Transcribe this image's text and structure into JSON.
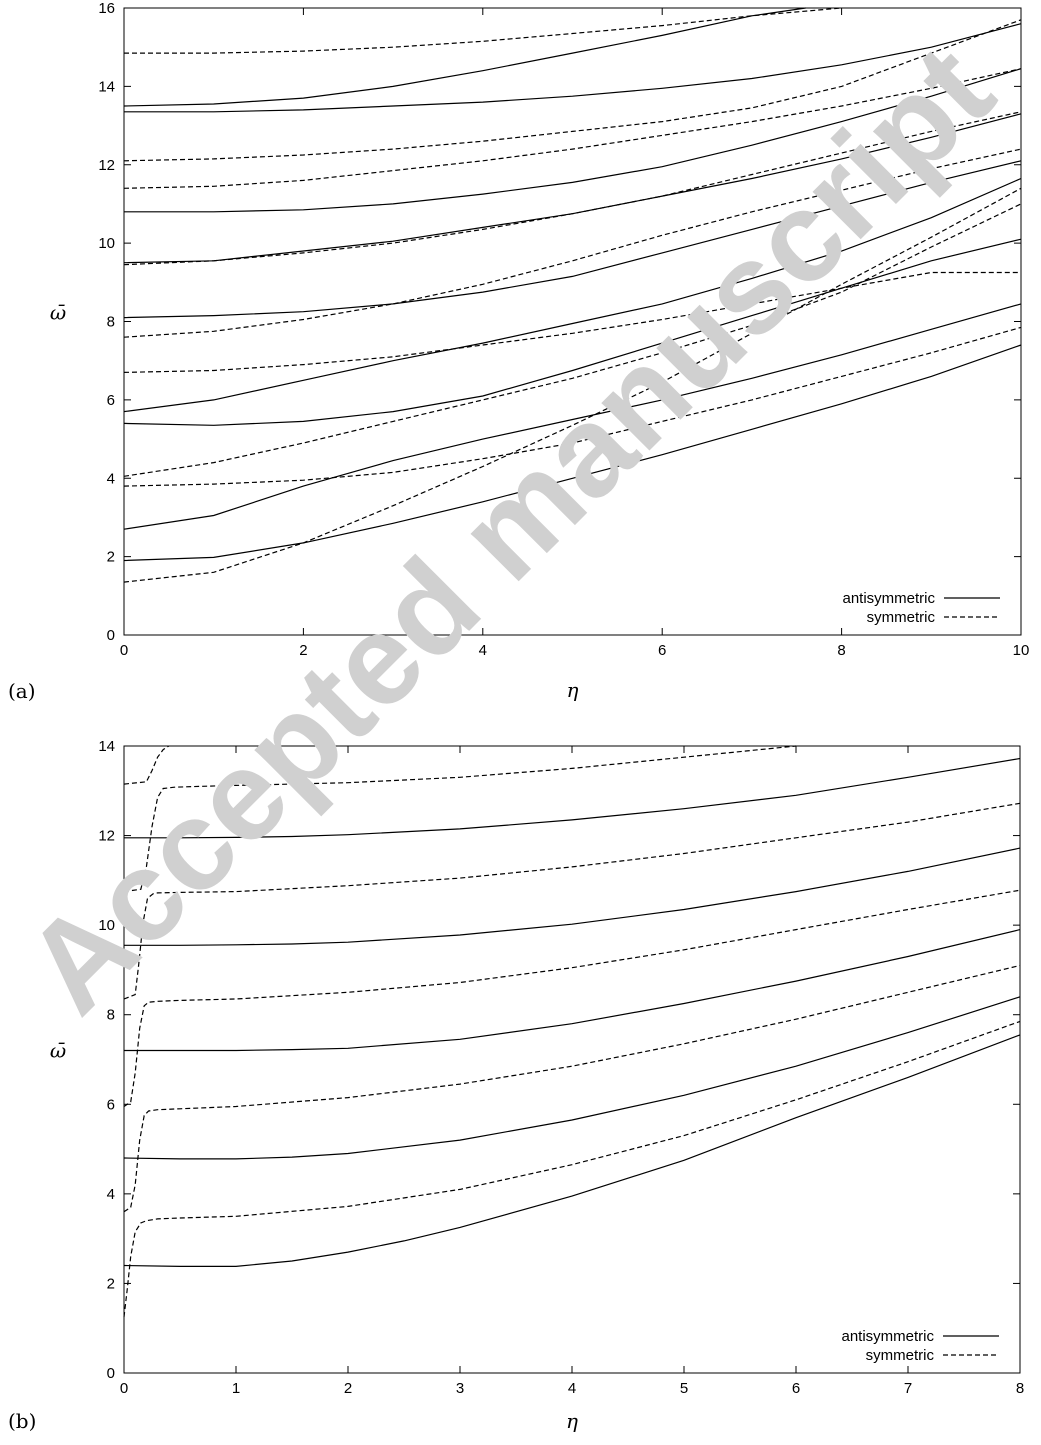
{
  "watermark": "Accepted manuscript",
  "chart_data": [
    {
      "panel_label": "(a)",
      "type": "line",
      "xlabel": "η",
      "ylabel": "ω̄",
      "xlim": [
        0,
        10
      ],
      "ylim": [
        0,
        16
      ],
      "xticks": [
        0,
        2,
        4,
        6,
        8,
        10
      ],
      "yticks": [
        0,
        2,
        4,
        6,
        8,
        10,
        12,
        14,
        16
      ],
      "grid": false,
      "legend_position": "bottom-right",
      "legend": [
        {
          "label": "antisymmetric",
          "style": "solid"
        },
        {
          "label": "symmetric",
          "style": "dashed"
        }
      ],
      "series": [
        {
          "style": "solid",
          "x": [
            0,
            1,
            2,
            3,
            4,
            5,
            6,
            7,
            8,
            9,
            10
          ],
          "y": [
            1.9,
            1.98,
            2.35,
            2.85,
            3.4,
            4.0,
            4.6,
            5.25,
            5.9,
            6.6,
            7.4
          ]
        },
        {
          "style": "solid",
          "x": [
            0,
            1,
            2,
            3,
            4,
            5,
            6,
            7,
            8,
            9,
            10
          ],
          "y": [
            2.7,
            3.05,
            3.8,
            4.45,
            5.0,
            5.5,
            6.0,
            6.55,
            7.15,
            7.8,
            8.45
          ]
        },
        {
          "style": "solid",
          "x": [
            0,
            1,
            2,
            3,
            4,
            5,
            6,
            7,
            8,
            9,
            10
          ],
          "y": [
            5.4,
            5.35,
            5.45,
            5.7,
            6.1,
            6.75,
            7.45,
            8.15,
            8.85,
            9.55,
            10.1
          ]
        },
        {
          "style": "solid",
          "x": [
            0,
            1,
            2,
            3,
            4,
            5,
            6,
            7,
            8,
            9,
            10
          ],
          "y": [
            5.7,
            6.0,
            6.5,
            7.0,
            7.45,
            7.95,
            8.45,
            9.1,
            9.8,
            10.65,
            11.65
          ]
        },
        {
          "style": "solid",
          "x": [
            0,
            1,
            2,
            3,
            4,
            5,
            6,
            7,
            8,
            9,
            10
          ],
          "y": [
            8.1,
            8.15,
            8.25,
            8.45,
            8.75,
            9.15,
            9.75,
            10.35,
            10.95,
            11.55,
            12.1
          ]
        },
        {
          "style": "solid",
          "x": [
            0,
            1,
            2,
            3,
            4,
            5,
            6,
            7,
            8,
            9,
            10
          ],
          "y": [
            9.5,
            9.55,
            9.8,
            10.05,
            10.4,
            10.75,
            11.2,
            11.65,
            12.15,
            12.7,
            13.3
          ]
        },
        {
          "style": "solid",
          "x": [
            0,
            1,
            2,
            3,
            4,
            5,
            6,
            7,
            8,
            9,
            10
          ],
          "y": [
            10.8,
            10.8,
            10.85,
            11.0,
            11.25,
            11.55,
            11.95,
            12.5,
            13.1,
            13.75,
            14.45
          ]
        },
        {
          "style": "solid",
          "x": [
            0,
            1,
            2,
            3,
            4,
            5,
            6,
            7,
            8,
            9,
            10
          ],
          "y": [
            13.35,
            13.35,
            13.4,
            13.5,
            13.6,
            13.75,
            13.95,
            14.2,
            14.55,
            15.0,
            15.6
          ]
        },
        {
          "style": "solid",
          "x": [
            0,
            1,
            2,
            3,
            4,
            5,
            6,
            7,
            7.6
          ],
          "y": [
            13.5,
            13.55,
            13.7,
            14.0,
            14.4,
            14.85,
            15.3,
            15.8,
            16.0
          ]
        },
        {
          "style": "dashed",
          "x": [
            0,
            1,
            2,
            3,
            4,
            5,
            6,
            7,
            8,
            9,
            10
          ],
          "y": [
            1.35,
            1.6,
            2.35,
            3.3,
            4.3,
            5.35,
            6.45,
            7.7,
            8.95,
            10.15,
            11.4
          ]
        },
        {
          "style": "dashed",
          "x": [
            0,
            1,
            2,
            3,
            4,
            5,
            6,
            7,
            8,
            9,
            10
          ],
          "y": [
            3.8,
            3.85,
            3.95,
            4.15,
            4.5,
            4.9,
            5.45,
            6.0,
            6.6,
            7.2,
            7.85
          ]
        },
        {
          "style": "dashed",
          "x": [
            0,
            1,
            2,
            3,
            4,
            5,
            6,
            7,
            8,
            9,
            10
          ],
          "y": [
            4.05,
            4.4,
            4.9,
            5.45,
            6.0,
            6.55,
            7.2,
            7.9,
            8.75,
            9.9,
            11.0
          ]
        },
        {
          "style": "dashed",
          "x": [
            0,
            1,
            2,
            3,
            4,
            5,
            6,
            7,
            8,
            9,
            10
          ],
          "y": [
            6.7,
            6.75,
            6.9,
            7.1,
            7.4,
            7.7,
            8.05,
            8.45,
            8.85,
            9.25,
            9.25
          ]
        },
        {
          "style": "dashed",
          "x": [
            0,
            1,
            2,
            3,
            4,
            5,
            6,
            7,
            8,
            9,
            10
          ],
          "y": [
            7.6,
            7.75,
            8.05,
            8.45,
            8.95,
            9.55,
            10.2,
            10.8,
            11.35,
            11.9,
            12.4
          ]
        },
        {
          "style": "dashed",
          "x": [
            0,
            1,
            2,
            3,
            4,
            5,
            6,
            7,
            8,
            9,
            10
          ],
          "y": [
            9.45,
            9.55,
            9.75,
            10.0,
            10.35,
            10.75,
            11.2,
            11.75,
            12.3,
            12.85,
            13.35
          ]
        },
        {
          "style": "dashed",
          "x": [
            0,
            1,
            2,
            3,
            4,
            5,
            6,
            7,
            8,
            9,
            10
          ],
          "y": [
            11.4,
            11.45,
            11.6,
            11.85,
            12.1,
            12.4,
            12.75,
            13.1,
            13.5,
            13.95,
            14.45
          ]
        },
        {
          "style": "dashed",
          "x": [
            0,
            1,
            2,
            3,
            4,
            5,
            6,
            7,
            8,
            9,
            10
          ],
          "y": [
            12.1,
            12.15,
            12.25,
            12.4,
            12.6,
            12.85,
            13.1,
            13.45,
            14.0,
            14.85,
            15.7
          ]
        },
        {
          "style": "dashed",
          "x": [
            0,
            1,
            2,
            3,
            4,
            5,
            6,
            7,
            8
          ],
          "y": [
            14.85,
            14.85,
            14.9,
            15.0,
            15.15,
            15.35,
            15.55,
            15.8,
            16.0
          ]
        }
      ]
    },
    {
      "panel_label": "(b)",
      "type": "line",
      "xlabel": "η",
      "ylabel": "ω̄",
      "xlim": [
        0,
        8
      ],
      "ylim": [
        0,
        14
      ],
      "xticks": [
        0,
        1,
        2,
        3,
        4,
        5,
        6,
        7,
        8
      ],
      "yticks": [
        0,
        2,
        4,
        6,
        8,
        10,
        12,
        14
      ],
      "grid": false,
      "legend_position": "bottom-right",
      "legend": [
        {
          "label": "antisymmetric",
          "style": "solid"
        },
        {
          "label": "symmetric",
          "style": "dashed"
        }
      ],
      "series": [
        {
          "style": "solid",
          "x": [
            0,
            0.5,
            1,
            1.5,
            2,
            2.5,
            3,
            4,
            5,
            6,
            7,
            8
          ],
          "y": [
            2.4,
            2.38,
            2.38,
            2.5,
            2.7,
            2.95,
            3.25,
            3.95,
            4.75,
            5.7,
            6.6,
            7.55
          ]
        },
        {
          "style": "solid",
          "x": [
            0,
            0.5,
            1,
            1.5,
            2,
            3,
            4,
            5,
            6,
            7,
            8
          ],
          "y": [
            4.8,
            4.78,
            4.78,
            4.82,
            4.9,
            5.2,
            5.65,
            6.2,
            6.85,
            7.6,
            8.4
          ]
        },
        {
          "style": "solid",
          "x": [
            0,
            0.5,
            1,
            1.5,
            2,
            3,
            4,
            5,
            6,
            7,
            8
          ],
          "y": [
            7.2,
            7.2,
            7.2,
            7.22,
            7.25,
            7.45,
            7.8,
            8.25,
            8.75,
            9.3,
            9.9
          ]
        },
        {
          "style": "solid",
          "x": [
            0,
            0.5,
            1,
            1.5,
            2,
            3,
            4,
            5,
            6,
            7,
            8
          ],
          "y": [
            9.55,
            9.55,
            9.56,
            9.58,
            9.62,
            9.78,
            10.02,
            10.35,
            10.75,
            11.2,
            11.72
          ]
        },
        {
          "style": "solid",
          "x": [
            0,
            0.5,
            1,
            1.5,
            2,
            3,
            4,
            5,
            6,
            7,
            8
          ],
          "y": [
            11.95,
            11.95,
            11.96,
            11.98,
            12.02,
            12.15,
            12.35,
            12.6,
            12.9,
            13.3,
            13.72
          ]
        },
        {
          "style": "dashed",
          "x": [
            0,
            0.03,
            0.06,
            0.1,
            0.15,
            0.2,
            0.3,
            0.5,
            1,
            2,
            3,
            4,
            5,
            6,
            7,
            8
          ],
          "y": [
            1.25,
            1.9,
            2.6,
            3.15,
            3.35,
            3.4,
            3.44,
            3.46,
            3.5,
            3.72,
            4.1,
            4.65,
            5.3,
            6.1,
            6.95,
            7.85
          ]
        },
        {
          "style": "dashed",
          "x": [
            0,
            0.06,
            0.1,
            0.14,
            0.18,
            0.22,
            0.3,
            0.5,
            1,
            2,
            3,
            4,
            5,
            6,
            7,
            8
          ],
          "y": [
            3.6,
            3.7,
            4.2,
            5.2,
            5.75,
            5.85,
            5.88,
            5.9,
            5.95,
            6.15,
            6.45,
            6.85,
            7.35,
            7.9,
            8.5,
            9.1
          ]
        },
        {
          "style": "dashed",
          "x": [
            0,
            0.06,
            0.1,
            0.14,
            0.18,
            0.22,
            0.3,
            0.5,
            1,
            2,
            3,
            4,
            5,
            6,
            7,
            8
          ],
          "y": [
            5.95,
            6.05,
            6.7,
            7.7,
            8.2,
            8.28,
            8.3,
            8.32,
            8.35,
            8.5,
            8.72,
            9.05,
            9.45,
            9.9,
            10.35,
            10.78
          ]
        },
        {
          "style": "dashed",
          "x": [
            0,
            0.1,
            0.13,
            0.17,
            0.21,
            0.26,
            0.3,
            0.5,
            1,
            2,
            3,
            4,
            5,
            6,
            7,
            8
          ],
          "y": [
            8.35,
            8.45,
            9.1,
            10.05,
            10.6,
            10.7,
            10.72,
            10.73,
            10.75,
            10.88,
            11.05,
            11.3,
            11.6,
            11.95,
            12.3,
            12.72
          ]
        },
        {
          "style": "dashed",
          "x": [
            0,
            0.15,
            0.2,
            0.25,
            0.3,
            0.35,
            0.45,
            0.7,
            1,
            2,
            3,
            4,
            5,
            6
          ],
          "y": [
            10.75,
            10.8,
            11.3,
            12.2,
            12.85,
            13.05,
            13.08,
            13.1,
            13.12,
            13.18,
            13.3,
            13.5,
            13.75,
            14.0
          ]
        },
        {
          "style": "dashed",
          "x": [
            0,
            0.2,
            0.25,
            0.3,
            0.35,
            0.4
          ],
          "y": [
            13.15,
            13.2,
            13.45,
            13.75,
            13.92,
            14.0
          ]
        }
      ]
    }
  ]
}
